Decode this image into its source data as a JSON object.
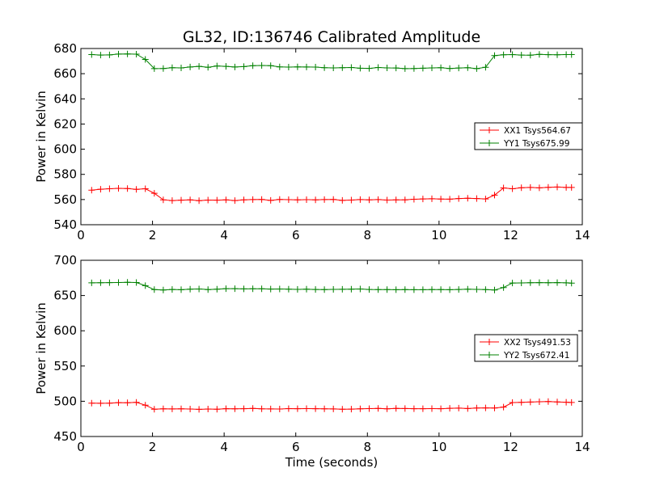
{
  "chart_data": [
    {
      "type": "line",
      "title": "GL32, ID:136746 Calibrated Amplitude",
      "xlabel": "",
      "ylabel": "Power in Kelvin",
      "xlim": [
        0,
        14
      ],
      "ylim": [
        540,
        680
      ],
      "xticks": [
        0,
        2,
        4,
        6,
        8,
        10,
        12,
        14
      ],
      "yticks": [
        540,
        560,
        580,
        600,
        620,
        640,
        660,
        680
      ],
      "grid": false,
      "legend_position": "center-right",
      "series": [
        {
          "name": "XX1 Tsys564.67",
          "color": "#ff0000",
          "marker": "plus",
          "x": [
            0.3,
            0.55,
            0.8,
            1.05,
            1.3,
            1.55,
            1.8,
            2.05,
            2.3,
            2.55,
            2.8,
            3.05,
            3.3,
            3.55,
            3.8,
            4.05,
            4.3,
            4.55,
            4.8,
            5.05,
            5.3,
            5.55,
            5.8,
            6.05,
            6.3,
            6.55,
            6.8,
            7.05,
            7.3,
            7.55,
            7.8,
            8.05,
            8.3,
            8.55,
            8.8,
            9.05,
            9.3,
            9.55,
            9.8,
            10.05,
            10.3,
            10.55,
            10.8,
            11.05,
            11.3,
            11.55,
            11.8,
            12.05,
            12.3,
            12.55,
            12.8,
            13.05,
            13.3,
            13.55,
            13.7
          ],
          "y": [
            567.5,
            568.2,
            568.6,
            568.9,
            568.7,
            568.1,
            568.6,
            565.0,
            559.8,
            559.2,
            559.5,
            559.7,
            559.1,
            559.6,
            559.5,
            559.8,
            559.2,
            559.7,
            560.0,
            560.1,
            559.3,
            560.1,
            559.9,
            559.8,
            559.9,
            559.8,
            560.0,
            560.1,
            559.3,
            559.6,
            560.0,
            559.8,
            560.0,
            559.6,
            559.7,
            559.8,
            560.2,
            560.5,
            560.6,
            560.4,
            560.3,
            560.8,
            561.0,
            560.8,
            560.5,
            563.5,
            569.2,
            568.6,
            569.4,
            569.6,
            569.3,
            569.7,
            569.9,
            569.6,
            569.6
          ]
        },
        {
          "name": "YY1 Tsys675.99",
          "color": "#008000",
          "marker": "plus",
          "x": [
            0.3,
            0.55,
            0.8,
            1.05,
            1.3,
            1.55,
            1.8,
            2.05,
            2.3,
            2.55,
            2.8,
            3.05,
            3.3,
            3.55,
            3.8,
            4.05,
            4.3,
            4.55,
            4.8,
            5.05,
            5.3,
            5.55,
            5.8,
            6.05,
            6.3,
            6.55,
            6.8,
            7.05,
            7.3,
            7.55,
            7.8,
            8.05,
            8.3,
            8.55,
            8.8,
            9.05,
            9.3,
            9.55,
            9.8,
            10.05,
            10.3,
            10.55,
            10.8,
            11.05,
            11.3,
            11.55,
            11.8,
            12.05,
            12.3,
            12.55,
            12.8,
            13.05,
            13.3,
            13.55,
            13.7
          ],
          "y": [
            675.2,
            674.8,
            674.9,
            675.6,
            675.7,
            675.5,
            671.3,
            664.0,
            664.1,
            664.8,
            664.6,
            665.3,
            665.8,
            665.1,
            666.1,
            665.8,
            665.3,
            665.6,
            666.4,
            666.5,
            666.3,
            665.4,
            665.2,
            665.4,
            665.3,
            665.2,
            664.7,
            664.6,
            664.8,
            664.9,
            664.3,
            664.2,
            664.9,
            664.6,
            664.5,
            664.0,
            664.1,
            664.3,
            664.6,
            664.8,
            664.1,
            664.5,
            664.8,
            664.0,
            665.1,
            674.4,
            675.0,
            675.2,
            674.8,
            674.7,
            675.3,
            675.1,
            675.0,
            675.2,
            675.2
          ]
        }
      ]
    },
    {
      "type": "line",
      "title": "",
      "xlabel": "Time (seconds)",
      "ylabel": "Power in Kelvin",
      "xlim": [
        0,
        14
      ],
      "ylim": [
        450,
        700
      ],
      "xticks": [
        0,
        2,
        4,
        6,
        8,
        10,
        12,
        14
      ],
      "yticks": [
        450,
        500,
        550,
        600,
        650,
        700
      ],
      "grid": false,
      "legend_position": "center-right",
      "series": [
        {
          "name": "XX2 Tsys491.53",
          "color": "#ff0000",
          "marker": "plus",
          "x": [
            0.3,
            0.55,
            0.8,
            1.05,
            1.3,
            1.55,
            1.8,
            2.05,
            2.3,
            2.55,
            2.8,
            3.05,
            3.3,
            3.55,
            3.8,
            4.05,
            4.3,
            4.55,
            4.8,
            5.05,
            5.3,
            5.55,
            5.8,
            6.05,
            6.3,
            6.55,
            6.8,
            7.05,
            7.3,
            7.55,
            7.8,
            8.05,
            8.3,
            8.55,
            8.8,
            9.05,
            9.3,
            9.55,
            9.8,
            10.05,
            10.3,
            10.55,
            10.8,
            11.05,
            11.3,
            11.55,
            11.8,
            12.05,
            12.3,
            12.55,
            12.8,
            13.05,
            13.3,
            13.55,
            13.7
          ],
          "y": [
            497.3,
            497.1,
            497.4,
            498.0,
            497.9,
            498.4,
            494.5,
            488.6,
            489.3,
            489.1,
            489.2,
            489.0,
            488.5,
            489.0,
            488.6,
            489.4,
            489.3,
            489.5,
            489.8,
            489.2,
            489.1,
            489.0,
            489.6,
            489.4,
            489.6,
            489.5,
            489.3,
            489.1,
            488.6,
            488.9,
            489.2,
            489.6,
            489.8,
            489.2,
            489.9,
            489.7,
            489.4,
            489.4,
            489.6,
            489.5,
            490.0,
            490.2,
            489.7,
            490.4,
            490.6,
            490.5,
            491.8,
            498.2,
            498.4,
            498.9,
            499.3,
            499.5,
            499.1,
            498.6,
            498.3
          ]
        },
        {
          "name": "YY2 Tsys672.41",
          "color": "#008000",
          "marker": "plus",
          "x": [
            0.3,
            0.55,
            0.8,
            1.05,
            1.3,
            1.55,
            1.8,
            2.05,
            2.3,
            2.55,
            2.8,
            3.05,
            3.3,
            3.55,
            3.8,
            4.05,
            4.3,
            4.55,
            4.8,
            5.05,
            5.3,
            5.55,
            5.8,
            6.05,
            6.3,
            6.55,
            6.8,
            7.05,
            7.3,
            7.55,
            7.8,
            8.05,
            8.3,
            8.55,
            8.8,
            9.05,
            9.3,
            9.55,
            9.8,
            10.05,
            10.3,
            10.55,
            10.8,
            11.05,
            11.3,
            11.55,
            11.8,
            12.05,
            12.3,
            12.55,
            12.8,
            13.05,
            13.3,
            13.55,
            13.7
          ],
          "y": [
            668.0,
            668.1,
            668.4,
            668.5,
            668.8,
            668.5,
            664.0,
            658.4,
            657.9,
            658.6,
            658.3,
            658.9,
            659.3,
            658.5,
            659.1,
            659.7,
            659.8,
            659.4,
            659.5,
            659.6,
            659.2,
            659.3,
            658.9,
            658.7,
            658.9,
            658.6,
            658.5,
            658.7,
            658.8,
            659.0,
            659.3,
            658.6,
            658.5,
            658.4,
            658.3,
            658.5,
            658.2,
            658.3,
            658.5,
            658.4,
            658.3,
            658.6,
            658.9,
            658.7,
            658.5,
            657.8,
            661.4,
            667.8,
            667.9,
            668.1,
            668.4,
            668.2,
            668.3,
            668.0,
            667.7
          ]
        }
      ]
    }
  ]
}
